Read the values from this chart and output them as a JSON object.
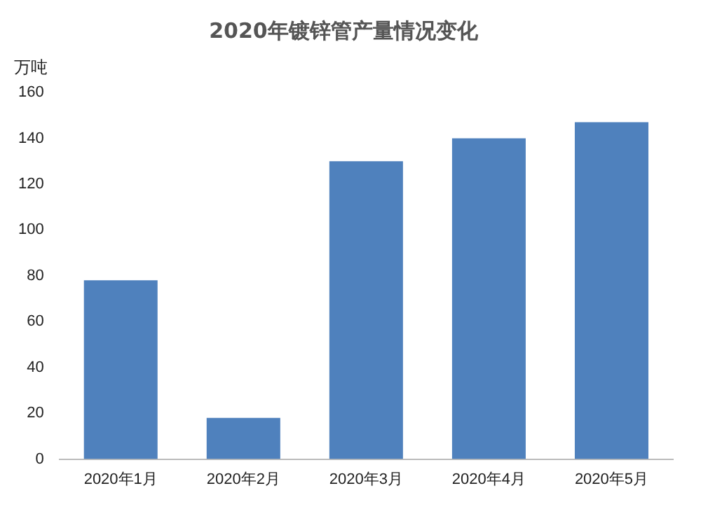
{
  "chart_data": {
    "type": "bar",
    "title": "2020年镀锌管产量情况变化",
    "ylabel": "万吨",
    "categories": [
      "2020年1月",
      "2020年2月",
      "2020年3月",
      "2020年4月",
      "2020年5月"
    ],
    "values": [
      78,
      18,
      130,
      140,
      147
    ],
    "color": "#4f81bd",
    "ylim": [
      0,
      160
    ],
    "yticks": [
      0,
      20,
      40,
      60,
      80,
      100,
      120,
      140,
      160
    ],
    "grid": false,
    "legend": false
  }
}
